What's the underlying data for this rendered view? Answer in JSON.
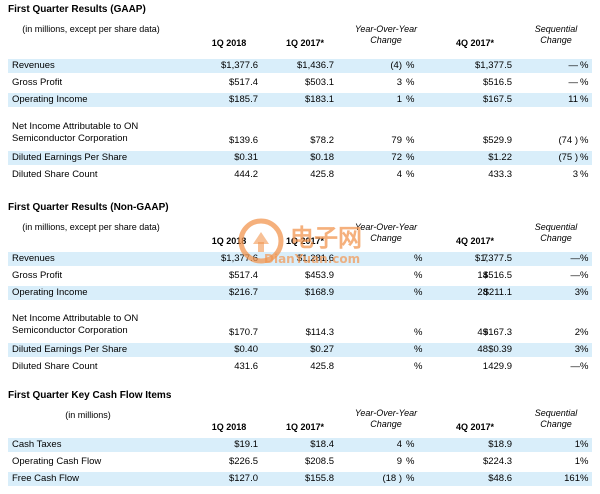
{
  "gaap": {
    "title": "First Quarter Results (GAAP)",
    "header": {
      "label": "(in millions, except per share data)",
      "c1": "1Q 2018",
      "c2": "1Q 2017*",
      "c3": "Year-Over-Year Change",
      "c4": "4Q 2017*",
      "c5": "Sequential Change"
    },
    "rows": [
      {
        "label": "Revenues",
        "c1": "$1,377.6",
        "c2": "$1,436.7",
        "c3": "(4)",
        "c3u": "%",
        "c4": "$1,377.5",
        "c5": "—",
        "c5u": "%"
      },
      {
        "label": "Gross Profit",
        "c1": "$517.4",
        "c2": "$503.1",
        "c3": "3",
        "c3u": "%",
        "c4": "$516.5",
        "c5": "—",
        "c5u": "%"
      },
      {
        "label": "Operating Income",
        "c1": "$185.7",
        "c2": "$183.1",
        "c3": "1",
        "c3u": "%",
        "c4": "$167.5",
        "c5": "11",
        "c5u": "%"
      },
      {
        "label": "Net Income Attributable to ON Semiconductor Corporation",
        "c1": "$139.6",
        "c2": "$78.2",
        "c3": "79",
        "c3u": "%",
        "c4": "$529.9",
        "c5": "(74 )",
        "c5u": "%"
      },
      {
        "label": "Diluted Earnings Per Share",
        "c1": "$0.31",
        "c2": "$0.18",
        "c3": "72",
        "c3u": "%",
        "c4": "$1.22",
        "c5": "(75 )",
        "c5u": "%"
      },
      {
        "label": "Diluted Share Count",
        "c1": "444.2",
        "c2": "425.8",
        "c3": "4",
        "c3u": "%",
        "c4": "433.3",
        "c5": "3",
        "c5u": "%"
      }
    ]
  },
  "nongaap": {
    "title": "First Quarter Results (Non-GAAP)",
    "header": {
      "label": "(in millions, except per share data)",
      "c1": "1Q 2018",
      "c2": "1Q 2017*",
      "c3": "Year-Over-Year Change",
      "c4": "4Q 2017*",
      "c5": "Sequential Change"
    },
    "rows": [
      {
        "label": "Revenues",
        "c1": "$1,377.6",
        "c2": "$1,281.6",
        "c3": "7",
        "c3u": "%",
        "c4": "$1,377.5",
        "c5": "—",
        "c5u": "%"
      },
      {
        "label": "Gross Profit",
        "c1": "$517.4",
        "c2": "$453.9",
        "c3": "14",
        "c3u": "%",
        "c4": "$516.5",
        "c5": "—",
        "c5u": "%"
      },
      {
        "label": "Operating Income",
        "c1": "$216.7",
        "c2": "$168.9",
        "c3": "28",
        "c3u": "%",
        "c4": "$211.1",
        "c5": "3",
        "c5u": "%"
      },
      {
        "label": "Net Income Attributable to ON Semiconductor Corporation",
        "c1": "$170.7",
        "c2": "$114.3",
        "c3": "49",
        "c3u": "%",
        "c4": "$167.3",
        "c5": "2",
        "c5u": "%"
      },
      {
        "label": "Diluted Earnings Per Share",
        "c1": "$0.40",
        "c2": "$0.27",
        "c3": "48",
        "c3u": "%",
        "c4": "$0.39",
        "c5": "3",
        "c5u": "%"
      },
      {
        "label": "Diluted Share Count",
        "c1": "431.6",
        "c2": "425.8",
        "c3": "1",
        "c3u": "%",
        "c4": "429.9",
        "c5": "—",
        "c5u": "%"
      }
    ]
  },
  "cashflow": {
    "title": "First Quarter Key Cash Flow Items",
    "header": {
      "label": "(in millions)",
      "c1": "1Q 2018",
      "c2": "1Q 2017*",
      "c3": "Year-Over-Year Change",
      "c4": "4Q 2017*",
      "c5": "Sequential Change"
    },
    "rows": [
      {
        "label": "Cash Taxes",
        "c1": "$19.1",
        "c2": "$18.4",
        "c3": "4",
        "c3u": "%",
        "c4": "$18.9",
        "c5": "1",
        "c5u": "%"
      },
      {
        "label": "Operating Cash Flow",
        "c1": "$226.5",
        "c2": "$208.5",
        "c3": "9",
        "c3u": "%",
        "c4": "$224.3",
        "c5": "1",
        "c5u": "%"
      },
      {
        "label": "Free Cash Flow",
        "c1": "$127.0",
        "c2": "$155.8",
        "c3": "(18 )",
        "c3u": "%",
        "c4": "$48.6",
        "c5": "161",
        "c5u": "%"
      }
    ]
  },
  "watermark": {
    "cn": "电子网",
    "en": "DianYuan.com"
  }
}
